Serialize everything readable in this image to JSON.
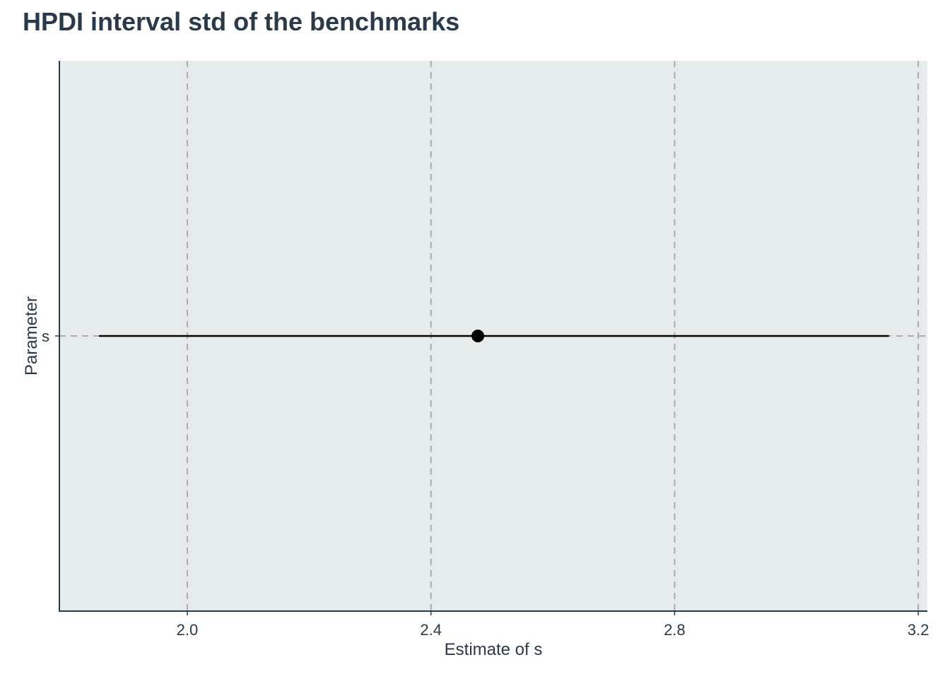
{
  "chart_data": {
    "type": "interval",
    "title": "HPDI interval std of the benchmarks",
    "xlabel": "Estimate of s",
    "ylabel": "Parameter",
    "xlim": [
      1.79,
      3.215
    ],
    "xticks": [
      2.0,
      2.4,
      2.8,
      3.2
    ],
    "xtick_labels": [
      "2.0",
      "2.4",
      "2.8",
      "3.2"
    ],
    "categories": [
      "s"
    ],
    "points": [
      {
        "parameter": "s",
        "estimate": 2.477,
        "lower": 1.855,
        "upper": 3.152
      }
    ],
    "grid": true,
    "grid_style": "dashed",
    "colors": {
      "panel_background": "#e6ecec",
      "grid": "#a9adb0",
      "axis": "#2b3a4a",
      "text": "#2b3a4a",
      "point": "#000000",
      "interval": "#000000"
    }
  }
}
